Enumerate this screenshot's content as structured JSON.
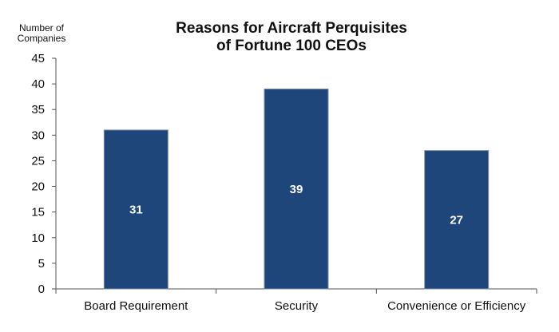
{
  "chart_data": {
    "type": "bar",
    "title": "Reasons for Aircraft Perquisites of Fortune 100 CEOs",
    "title_lines": [
      "Reasons for Aircraft Perquisites",
      "of Fortune 100 CEOs"
    ],
    "ylabel": "Number of Companies",
    "ylabel_lines": [
      "Number of",
      "Companies"
    ],
    "xlabel": "",
    "categories": [
      "Board Requirement",
      "Security",
      "Convenience or Efficiency"
    ],
    "values": [
      31,
      39,
      27
    ],
    "data_labels": [
      "31",
      "39",
      "27"
    ],
    "ylim": [
      0,
      45
    ],
    "yticks": [
      0,
      5,
      10,
      15,
      20,
      25,
      30,
      35,
      40,
      45
    ],
    "grid": false,
    "legend": "none",
    "bar_color": "#1f467a",
    "bar_edge_color": "#7f8fae",
    "axis_color": "#555555"
  }
}
